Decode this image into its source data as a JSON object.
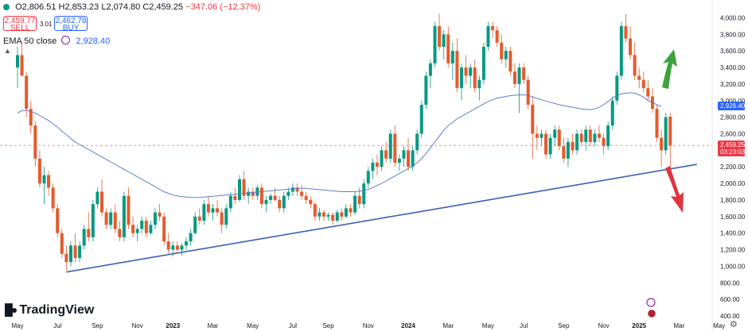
{
  "header": {
    "open": "O2,806.51",
    "high": "H2,853.23",
    "low": "L2,074.80",
    "close": "C2,459.25",
    "change": "−347.06 (−12.37%)"
  },
  "trade": {
    "sell_price": "2,459.77",
    "sell_label": "SELL",
    "spread": "3.01",
    "buy_price": "2,462.78",
    "buy_label": "BUY"
  },
  "indicator": {
    "label": "EMA 50 close",
    "value": "2,928.40"
  },
  "price_tag": {
    "value": "2,459.25",
    "timer": "03:23:03"
  },
  "brand": "TradingView",
  "colors": {
    "up": "#089981",
    "down": "#e35b2e",
    "ema": "#5b7ec9",
    "trend": "#3a5fb5",
    "arrow_up": "#3ca33a",
    "arrow_down": "#e0343f"
  },
  "chart_data": {
    "type": "candlestick",
    "yaxis": {
      "range": [
        400,
        4100
      ],
      "ticks": [
        "4,000.00",
        "3,800.00",
        "3,600.00",
        "3,400.00",
        "3,200.00",
        "3,000.00",
        "2,800.00",
        "2,600.00",
        "2,400.00",
        "2,200.00",
        "2,000.00",
        "1,800.00",
        "1,600.00",
        "1,400.00",
        "1,200.00",
        "1,000.00",
        "800.00",
        "600.00",
        "400.00"
      ],
      "tick_values": [
        4000,
        3800,
        3600,
        3400,
        3200,
        3000,
        2800,
        2600,
        2400,
        2200,
        2000,
        1800,
        1600,
        1400,
        1200,
        1000,
        800,
        600,
        400
      ]
    },
    "xaxis": {
      "labels": [
        "May",
        "Jul",
        "Sep",
        "Nov",
        "2023",
        "Mar",
        "May",
        "Jul",
        "Sep",
        "Nov",
        "2024",
        "Mar",
        "May",
        "Jul",
        "Sep",
        "Nov",
        "2025",
        "Mar",
        "May"
      ],
      "label_index": [
        0,
        9,
        18,
        27,
        35,
        44,
        53,
        62,
        70,
        79,
        88,
        97,
        106,
        114,
        123,
        132,
        140,
        149,
        158
      ]
    },
    "current_price": 2459.25,
    "ema50_last": 2928.4,
    "candles": [
      [
        3400,
        3650,
        3150,
        3550
      ],
      [
        3550,
        3700,
        3300,
        3300
      ],
      [
        3300,
        3350,
        2800,
        2900
      ],
      [
        2900,
        3000,
        2600,
        2700
      ],
      [
        2700,
        2750,
        2200,
        2300
      ],
      [
        2300,
        2400,
        1950,
        2000
      ],
      [
        2000,
        2200,
        1750,
        2100
      ],
      [
        2100,
        2150,
        1850,
        1950
      ],
      [
        1950,
        2000,
        1650,
        1700
      ],
      [
        1700,
        1750,
        1350,
        1400
      ],
      [
        1400,
        1450,
        1100,
        1150
      ],
      [
        1150,
        1250,
        950,
        1050
      ],
      [
        1050,
        1300,
        1000,
        1250
      ],
      [
        1250,
        1400,
        1050,
        1100
      ],
      [
        1100,
        1300,
        1050,
        1250
      ],
      [
        1250,
        1500,
        1200,
        1450
      ],
      [
        1450,
        1650,
        1300,
        1350
      ],
      [
        1350,
        1800,
        1300,
        1750
      ],
      [
        1750,
        1950,
        1700,
        1900
      ],
      [
        1900,
        2050,
        1600,
        1650
      ],
      [
        1650,
        1700,
        1450,
        1500
      ],
      [
        1500,
        1700,
        1450,
        1650
      ],
      [
        1650,
        1750,
        1400,
        1450
      ],
      [
        1450,
        1550,
        1300,
        1350
      ],
      [
        1350,
        1900,
        1300,
        1850
      ],
      [
        1850,
        1950,
        1450,
        1500
      ],
      [
        1500,
        1600,
        1350,
        1400
      ],
      [
        1400,
        1500,
        1300,
        1450
      ],
      [
        1450,
        1600,
        1400,
        1550
      ],
      [
        1550,
        1600,
        1350,
        1400
      ],
      [
        1400,
        1550,
        1380,
        1500
      ],
      [
        1500,
        1700,
        1450,
        1650
      ],
      [
        1650,
        1750,
        1550,
        1600
      ],
      [
        1600,
        1650,
        1250,
        1300
      ],
      [
        1300,
        1400,
        1150,
        1200
      ],
      [
        1200,
        1300,
        1120,
        1250
      ],
      [
        1250,
        1300,
        1150,
        1200
      ],
      [
        1200,
        1280,
        1130,
        1250
      ],
      [
        1250,
        1350,
        1200,
        1300
      ],
      [
        1300,
        1450,
        1250,
        1400
      ],
      [
        1400,
        1650,
        1380,
        1600
      ],
      [
        1600,
        1700,
        1500,
        1550
      ],
      [
        1550,
        1800,
        1500,
        1750
      ],
      [
        1750,
        1850,
        1600,
        1650
      ],
      [
        1650,
        1750,
        1550,
        1700
      ],
      [
        1700,
        1800,
        1600,
        1650
      ],
      [
        1650,
        1700,
        1400,
        1500
      ],
      [
        1500,
        1750,
        1450,
        1700
      ],
      [
        1700,
        1900,
        1650,
        1850
      ],
      [
        1850,
        1950,
        1750,
        1800
      ],
      [
        1800,
        2100,
        1780,
        2050
      ],
      [
        2050,
        2150,
        1800,
        1850
      ],
      [
        1850,
        1950,
        1750,
        1900
      ],
      [
        1900,
        1950,
        1800,
        1850
      ],
      [
        1850,
        1980,
        1800,
        1950
      ],
      [
        1950,
        2000,
        1700,
        1750
      ],
      [
        1750,
        1850,
        1650,
        1800
      ],
      [
        1800,
        1880,
        1750,
        1850
      ],
      [
        1850,
        1950,
        1780,
        1800
      ],
      [
        1800,
        1850,
        1650,
        1700
      ],
      [
        1700,
        1900,
        1650,
        1850
      ],
      [
        1850,
        1950,
        1800,
        1900
      ],
      [
        1900,
        2000,
        1850,
        1950
      ],
      [
        1950,
        2000,
        1850,
        1900
      ],
      [
        1900,
        1980,
        1800,
        1850
      ],
      [
        1850,
        1900,
        1750,
        1800
      ],
      [
        1800,
        1850,
        1700,
        1750
      ],
      [
        1750,
        1780,
        1550,
        1600
      ],
      [
        1600,
        1700,
        1550,
        1650
      ],
      [
        1650,
        1680,
        1550,
        1600
      ],
      [
        1600,
        1650,
        1550,
        1620
      ],
      [
        1620,
        1650,
        1500,
        1550
      ],
      [
        1550,
        1680,
        1530,
        1650
      ],
      [
        1650,
        1700,
        1550,
        1600
      ],
      [
        1600,
        1750,
        1580,
        1700
      ],
      [
        1700,
        1750,
        1600,
        1650
      ],
      [
        1650,
        1900,
        1620,
        1850
      ],
      [
        1850,
        1950,
        1700,
        1750
      ],
      [
        1750,
        2050,
        1700,
        2000
      ],
      [
        2000,
        2200,
        1950,
        2150
      ],
      [
        2150,
        2300,
        2050,
        2250
      ],
      [
        2250,
        2350,
        2100,
        2200
      ],
      [
        2200,
        2450,
        2150,
        2400
      ],
      [
        2400,
        2500,
        2250,
        2300
      ],
      [
        2300,
        2650,
        2250,
        2600
      ],
      [
        2600,
        2700,
        2200,
        2250
      ],
      [
        2250,
        2350,
        2150,
        2300
      ],
      [
        2300,
        2450,
        2200,
        2400
      ],
      [
        2400,
        2550,
        2150,
        2200
      ],
      [
        2200,
        2450,
        2150,
        2400
      ],
      [
        2400,
        2650,
        2350,
        2600
      ],
      [
        2600,
        3000,
        2550,
        2950
      ],
      [
        2950,
        3350,
        2900,
        3300
      ],
      [
        3300,
        3500,
        3150,
        3450
      ],
      [
        3450,
        3950,
        3400,
        3900
      ],
      [
        3900,
        4050,
        3600,
        3650
      ],
      [
        3650,
        3850,
        3500,
        3800
      ],
      [
        3800,
        3900,
        3400,
        3450
      ],
      [
        3450,
        3700,
        3250,
        3600
      ],
      [
        3600,
        3750,
        3100,
        3150
      ],
      [
        3150,
        3450,
        3000,
        3400
      ],
      [
        3400,
        3550,
        3200,
        3300
      ],
      [
        3300,
        3450,
        3150,
        3400
      ],
      [
        3400,
        3500,
        3100,
        3150
      ],
      [
        3150,
        3300,
        3000,
        3250
      ],
      [
        3250,
        3700,
        3200,
        3650
      ],
      [
        3650,
        3950,
        3600,
        3900
      ],
      [
        3900,
        3950,
        3750,
        3850
      ],
      [
        3850,
        3900,
        3650,
        3700
      ],
      [
        3700,
        3800,
        3450,
        3500
      ],
      [
        3500,
        3650,
        3400,
        3600
      ],
      [
        3600,
        3650,
        3300,
        3350
      ],
      [
        3350,
        3450,
        3150,
        3200
      ],
      [
        3200,
        3450,
        2850,
        3400
      ],
      [
        3400,
        3450,
        3200,
        3250
      ],
      [
        3250,
        3300,
        2900,
        2950
      ],
      [
        2950,
        3050,
        2300,
        2600
      ],
      [
        2600,
        2700,
        2400,
        2550
      ],
      [
        2550,
        2650,
        2450,
        2600
      ],
      [
        2600,
        2650,
        2300,
        2350
      ],
      [
        2350,
        2600,
        2300,
        2550
      ],
      [
        2550,
        2700,
        2450,
        2650
      ],
      [
        2650,
        2700,
        2400,
        2450
      ],
      [
        2450,
        2550,
        2250,
        2300
      ],
      [
        2300,
        2550,
        2200,
        2500
      ],
      [
        2500,
        2600,
        2350,
        2400
      ],
      [
        2400,
        2650,
        2350,
        2600
      ],
      [
        2600,
        2650,
        2450,
        2500
      ],
      [
        2500,
        2700,
        2400,
        2650
      ],
      [
        2650,
        2700,
        2450,
        2500
      ],
      [
        2500,
        2650,
        2450,
        2600
      ],
      [
        2600,
        2700,
        2500,
        2550
      ],
      [
        2550,
        2600,
        2350,
        2450
      ],
      [
        2450,
        2750,
        2400,
        2700
      ],
      [
        2700,
        3050,
        2650,
        3000
      ],
      [
        3000,
        3350,
        2950,
        3300
      ],
      [
        3300,
        3950,
        3250,
        3900
      ],
      [
        3900,
        4050,
        3700,
        3750
      ],
      [
        3750,
        3900,
        3500,
        3550
      ],
      [
        3550,
        3700,
        3250,
        3300
      ],
      [
        3300,
        3400,
        3150,
        3250
      ],
      [
        3250,
        3350,
        3100,
        3150
      ],
      [
        3150,
        3250,
        3000,
        3050
      ],
      [
        3050,
        3150,
        2850,
        2900
      ],
      [
        2900,
        2950,
        2500,
        2550
      ],
      [
        2550,
        2650,
        2200,
        2400
      ],
      [
        2400,
        2850,
        2350,
        2800
      ],
      [
        2806.51,
        2853.23,
        2074.8,
        2459.25
      ]
    ],
    "ema50": [
      2850,
      2880,
      2880,
      2870,
      2850,
      2820,
      2790,
      2760,
      2720,
      2680,
      2630,
      2590,
      2540,
      2500,
      2470,
      2440,
      2410,
      2380,
      2350,
      2320,
      2290,
      2260,
      2230,
      2200,
      2170,
      2140,
      2110,
      2080,
      2050,
      2020,
      1990,
      1960,
      1930,
      1900,
      1880,
      1860,
      1850,
      1840,
      1835,
      1830,
      1830,
      1830,
      1835,
      1840,
      1845,
      1850,
      1855,
      1860,
      1865,
      1870,
      1875,
      1880,
      1885,
      1890,
      1895,
      1900,
      1905,
      1910,
      1915,
      1920,
      1925,
      1930,
      1935,
      1940,
      1940,
      1940,
      1935,
      1930,
      1925,
      1920,
      1915,
      1910,
      1905,
      1900,
      1900,
      1900,
      1900,
      1905,
      1915,
      1930,
      1950,
      1975,
      2000,
      2030,
      2060,
      2090,
      2120,
      2150,
      2180,
      2210,
      2250,
      2300,
      2360,
      2430,
      2500,
      2570,
      2640,
      2700,
      2740,
      2780,
      2810,
      2840,
      2870,
      2900,
      2930,
      2960,
      2990,
      3010,
      3030,
      3040,
      3050,
      3060,
      3065,
      3070,
      3070,
      3065,
      3045,
      3025,
      3010,
      2995,
      2980,
      2965,
      2950,
      2940,
      2930,
      2920,
      2910,
      2900,
      2895,
      2890,
      2900,
      2920,
      2950,
      2990,
      3030,
      3060,
      3080,
      3090,
      3095,
      3090,
      3070,
      3040,
      3000,
      2980,
      2950,
      2928.4
    ],
    "trendline": {
      "from": {
        "index": 11,
        "value": 930
      },
      "to": {
        "index": 153,
        "value": 2230
      }
    },
    "annotations": [
      "arrow-up",
      "arrow-down"
    ]
  }
}
